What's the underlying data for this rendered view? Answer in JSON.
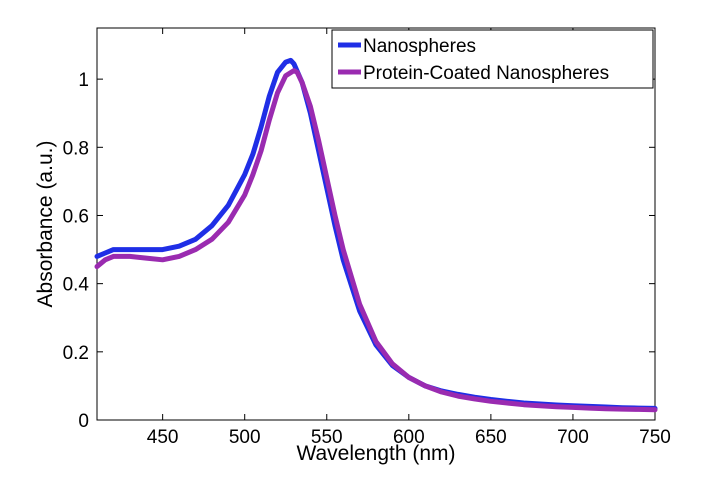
{
  "chart_data": {
    "type": "line",
    "title": "",
    "xlabel": "Wavelength (nm)",
    "ylabel": "Absorbance (a.u.)",
    "xlim": [
      410,
      750
    ],
    "ylim": [
      0,
      1.15
    ],
    "xticks": [
      450,
      500,
      550,
      600,
      650,
      700,
      750
    ],
    "yticks": [
      0,
      0.2,
      0.4,
      0.6,
      0.8,
      1
    ],
    "grid": false,
    "legend_position": "top-right",
    "series": [
      {
        "name": "Nanospheres",
        "color": "#1f2ee6",
        "x": [
          410,
          415,
          420,
          425,
          430,
          440,
          450,
          460,
          470,
          480,
          490,
          500,
          505,
          510,
          515,
          520,
          525,
          528,
          530,
          535,
          540,
          545,
          550,
          555,
          560,
          570,
          580,
          590,
          600,
          610,
          620,
          630,
          640,
          650,
          660,
          670,
          680,
          690,
          700,
          710,
          720,
          730,
          740,
          750
        ],
        "y": [
          0.48,
          0.49,
          0.5,
          0.5,
          0.5,
          0.5,
          0.5,
          0.51,
          0.53,
          0.57,
          0.63,
          0.72,
          0.78,
          0.86,
          0.95,
          1.02,
          1.05,
          1.055,
          1.045,
          0.99,
          0.9,
          0.79,
          0.68,
          0.57,
          0.47,
          0.32,
          0.22,
          0.16,
          0.125,
          0.1,
          0.085,
          0.075,
          0.067,
          0.06,
          0.055,
          0.05,
          0.047,
          0.044,
          0.042,
          0.04,
          0.038,
          0.036,
          0.035,
          0.034
        ]
      },
      {
        "name": "Protein-Coated Nanospheres",
        "color": "#9a2bb0",
        "x": [
          410,
          415,
          420,
          425,
          430,
          440,
          450,
          460,
          470,
          480,
          490,
          500,
          505,
          510,
          515,
          520,
          525,
          530,
          532,
          535,
          540,
          545,
          550,
          555,
          560,
          570,
          580,
          590,
          600,
          610,
          620,
          630,
          640,
          650,
          660,
          670,
          680,
          690,
          700,
          710,
          720,
          730,
          740,
          750
        ],
        "y": [
          0.45,
          0.47,
          0.48,
          0.48,
          0.48,
          0.475,
          0.47,
          0.48,
          0.5,
          0.53,
          0.58,
          0.66,
          0.72,
          0.79,
          0.88,
          0.96,
          1.01,
          1.025,
          1.02,
          0.99,
          0.92,
          0.82,
          0.71,
          0.6,
          0.5,
          0.34,
          0.23,
          0.165,
          0.125,
          0.1,
          0.082,
          0.07,
          0.062,
          0.055,
          0.05,
          0.045,
          0.042,
          0.039,
          0.037,
          0.035,
          0.033,
          0.032,
          0.031,
          0.03
        ]
      }
    ]
  }
}
